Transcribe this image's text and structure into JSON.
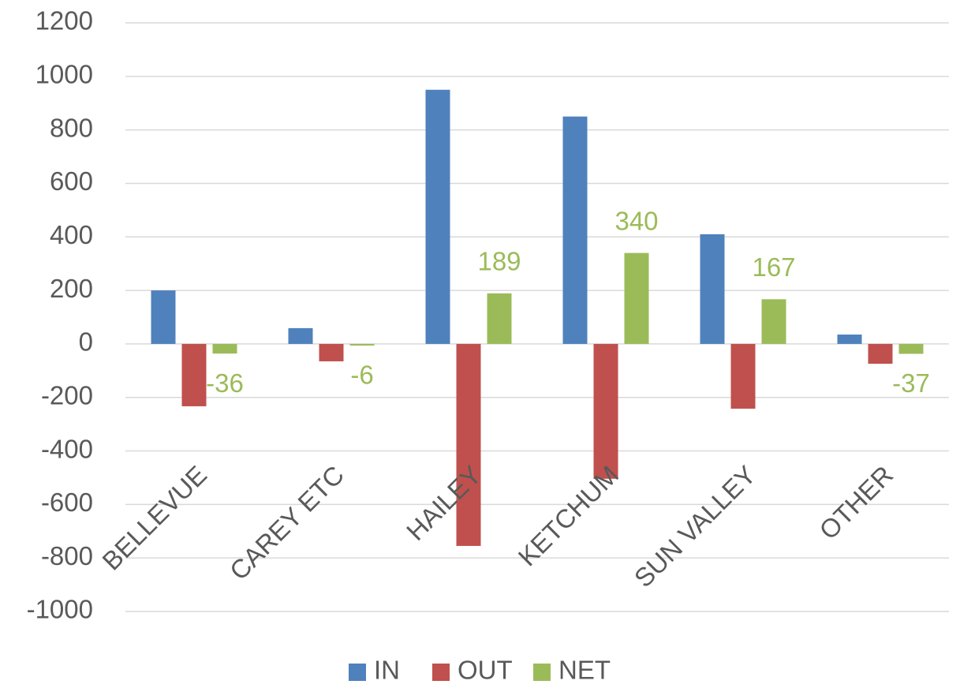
{
  "chart_data": {
    "type": "bar",
    "categories": [
      "BELLEVUE",
      "CAREY ETC",
      "HAILEY",
      "KETCHUM",
      "SUN VALLEY",
      "OTHER"
    ],
    "series": [
      {
        "name": "IN",
        "color": "#4f81bd",
        "values": [
          200,
          59,
          950,
          850,
          410,
          35
        ]
      },
      {
        "name": "OUT",
        "color": "#c0504d",
        "values": [
          -233,
          -65,
          -755,
          -504,
          -242,
          -74
        ]
      },
      {
        "name": "NET",
        "color": "#9bbb59",
        "values": [
          -36,
          -6,
          189,
          340,
          167,
          -37
        ],
        "data_labels": true
      }
    ],
    "ylim": [
      -1000,
      1200
    ],
    "yticks": [
      -1000,
      -800,
      -600,
      -400,
      -200,
      0,
      200,
      400,
      600,
      800,
      1000,
      1200
    ],
    "grid": true,
    "legend": "bottom"
  }
}
